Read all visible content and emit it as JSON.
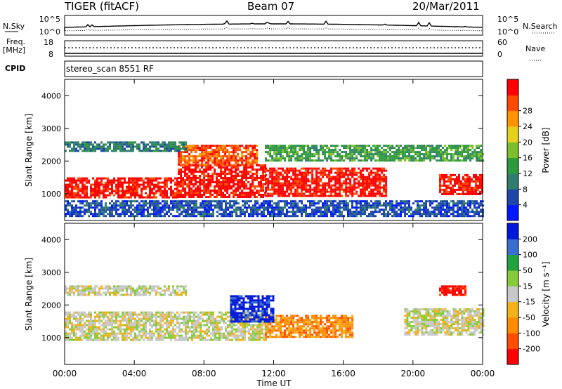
{
  "header": {
    "radar": "TIGER (fitACF)",
    "beam": "Beam 07",
    "date": "20/Mar/2011"
  },
  "noise_panel": {
    "left_label": "N.Sky",
    "right_label": "N.Search",
    "left_ticks": [
      "10^5",
      "10^0"
    ],
    "right_ticks": [
      "10^5",
      "10^0"
    ]
  },
  "freq_panel": {
    "left_label": "Freq.",
    "left_unit": "[MHz]",
    "right_label": "Nave",
    "left_ticks": [
      "18",
      "8"
    ],
    "right_ticks": [
      "60",
      "0"
    ],
    "cpid_label": "CPID",
    "cpid_value": "stereo_scan 8551 RF"
  },
  "chart_data": [
    {
      "type": "heatmap",
      "title": "",
      "xlabel": "Time UT",
      "ylabel": "Slant Range [km]",
      "x_ticks": [
        "00:00",
        "04:00",
        "08:00",
        "12:00",
        "16:00",
        "20:00",
        "00:00"
      ],
      "xlim_hours": [
        0,
        24
      ],
      "y_ticks": [
        1000,
        2000,
        3000,
        4000
      ],
      "ylim": [
        180,
        4500
      ],
      "colorbar": {
        "label": "Power [dB]",
        "ticks": [
          "4",
          "8",
          "12",
          "16",
          "20",
          "24",
          "28"
        ],
        "colors": [
          "#0018ff",
          "#1f47a8",
          "#2f7d6d",
          "#2e9a3d",
          "#7bbf2e",
          "#e6d01e",
          "#ff9400",
          "#ff4a00",
          "#ff0000"
        ]
      },
      "bands": [
        {
          "t0": 0.0,
          "t1": 6.5,
          "r0": 900,
          "r1": 1500,
          "level": 8
        },
        {
          "t0": 6.5,
          "t1": 11.5,
          "r0": 900,
          "r1": 1900,
          "level": 8
        },
        {
          "t0": 11.5,
          "t1": 18.5,
          "r0": 950,
          "r1": 1800,
          "level": 8
        },
        {
          "t0": 21.5,
          "t1": 24.0,
          "r0": 1000,
          "r1": 1600,
          "level": 8
        },
        {
          "t0": 6.5,
          "t1": 11.0,
          "r0": 1900,
          "r1": 2500,
          "level": 7
        },
        {
          "t0": 0.0,
          "t1": 7.0,
          "r0": 2300,
          "r1": 2600,
          "level": 2
        },
        {
          "t0": 11.5,
          "t1": 24.0,
          "r0": 2000,
          "r1": 2500,
          "level": 3
        },
        {
          "t0": 0.0,
          "t1": 24.0,
          "r0": 300,
          "r1": 800,
          "level": 1
        }
      ]
    },
    {
      "type": "heatmap",
      "title": "",
      "xlabel": "Time UT",
      "ylabel": "Slant Range [km]",
      "x_ticks": [
        "00:00",
        "04:00",
        "08:00",
        "12:00",
        "16:00",
        "20:00",
        "00:00"
      ],
      "xlim_hours": [
        0,
        24
      ],
      "y_ticks": [
        1000,
        2000,
        3000,
        4000
      ],
      "ylim": [
        180,
        4500
      ],
      "colorbar": {
        "label": "Velocity [m s⁻¹]",
        "ticks": [
          "200",
          "100",
          "50",
          "15",
          "-15",
          "-50",
          "-100",
          "-200"
        ],
        "colors": [
          "#0018d8",
          "#3a6fd0",
          "#21a33f",
          "#86cc3a",
          "#c8c8c8",
          "#f2b21a",
          "#ff8c00",
          "#ff4d00",
          "#ff0000"
        ]
      },
      "bands": [
        {
          "t0": 0.0,
          "t1": 11.5,
          "r0": 900,
          "r1": 1800,
          "level": 4
        },
        {
          "t0": 0.0,
          "t1": 7.0,
          "r0": 2300,
          "r1": 2600,
          "level": 4
        },
        {
          "t0": 11.5,
          "t1": 16.5,
          "r0": 1000,
          "r1": 1700,
          "level": 6
        },
        {
          "t0": 9.5,
          "t1": 12.0,
          "r0": 1500,
          "r1": 2300,
          "level": 0
        },
        {
          "t0": 19.5,
          "t1": 24.0,
          "r0": 1100,
          "r1": 1900,
          "level": 4
        },
        {
          "t0": 21.5,
          "t1": 23.0,
          "r0": 2300,
          "r1": 2600,
          "level": 8
        }
      ]
    }
  ]
}
